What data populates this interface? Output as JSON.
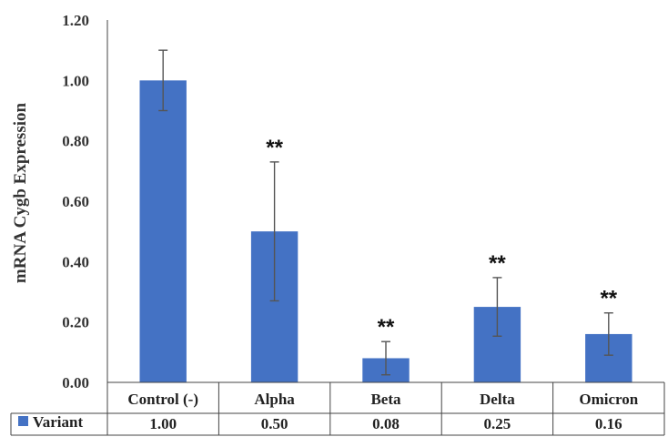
{
  "chart_data": {
    "type": "bar",
    "categories": [
      "Control (-)",
      "Alpha",
      "Beta",
      "Delta",
      "Omicron"
    ],
    "series": [
      {
        "name": "Variant",
        "values": [
          1.0,
          0.5,
          0.08,
          0.25,
          0.16
        ],
        "error": [
          0.1,
          0.23,
          0.055,
          0.097,
          0.07
        ],
        "color": "#4472C4"
      }
    ],
    "data_labels": [
      "1.00",
      "0.50",
      "0.08",
      "0.25",
      "0.16"
    ],
    "annotations": [
      "",
      "**",
      "**",
      "**",
      "**"
    ],
    "ylabel": "mRNA Cygb Expression",
    "xlabel": "",
    "title": "",
    "ylim": [
      0,
      1.2
    ],
    "yticks": [
      "0.00",
      "0.20",
      "0.40",
      "0.60",
      "0.80",
      "1.00",
      "1.20"
    ],
    "data_table": true,
    "grid": false
  }
}
